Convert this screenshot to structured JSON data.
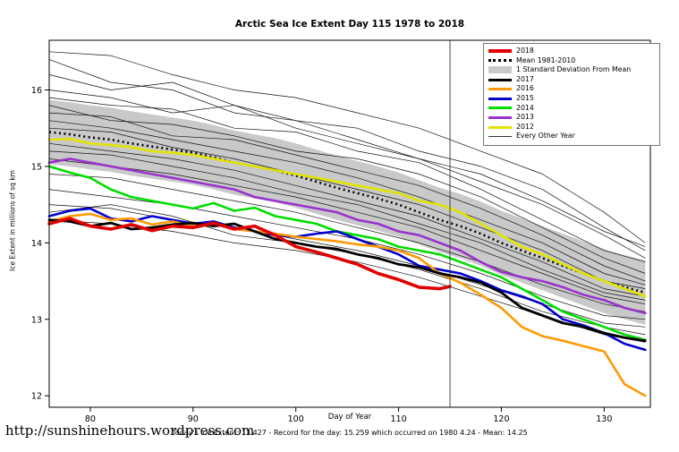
{
  "page": {
    "footer_note": "Today's Ice Extent: 13.427 - Record for the day: 15.259 which occurred on 1980 4.24 - Mean: 14.25",
    "url": "http://sunshinehours.wordpress.com"
  },
  "chart_data": {
    "type": "line",
    "title": "Arctic Sea Ice Extent Day 115 1978 to 2018",
    "xlabel": "Day of Year",
    "ylabel": "Ice Extent in millions of sq km",
    "xlim": [
      76,
      134.5
    ],
    "ylim": [
      11.85,
      16.65
    ],
    "xticks": [
      80,
      90,
      100,
      110,
      120,
      130
    ],
    "yticks": [
      12,
      13,
      14,
      15,
      16
    ],
    "vline_x": 115,
    "grid": false,
    "legend_position": "top-right",
    "x": [
      76,
      78,
      80,
      82,
      84,
      86,
      88,
      90,
      92,
      94,
      96,
      98,
      100,
      102,
      104,
      106,
      108,
      110,
      112,
      114,
      116,
      118,
      120,
      122,
      124,
      126,
      128,
      130,
      132,
      134
    ],
    "mean": {
      "label": "Mean 1981-2010",
      "color": "#000000",
      "dash": "2 3.5",
      "width": 2.6,
      "values": [
        15.45,
        15.42,
        15.38,
        15.35,
        15.3,
        15.26,
        15.22,
        15.18,
        15.12,
        15.05,
        15.0,
        14.95,
        14.88,
        14.8,
        14.72,
        14.65,
        14.58,
        14.5,
        14.4,
        14.3,
        14.22,
        14.12,
        14.0,
        13.9,
        13.8,
        13.7,
        13.6,
        13.5,
        13.42,
        13.35
      ]
    },
    "band": {
      "label": "1 Standard Deviation From Mean",
      "halfwidth": 0.42,
      "color": "#c9c9c9"
    },
    "series": [
      {
        "name": "2012",
        "color": "#e3e300",
        "width": 2.6,
        "values": [
          15.35,
          15.36,
          15.3,
          15.28,
          15.25,
          15.2,
          15.18,
          15.15,
          15.1,
          15.05,
          15.0,
          14.95,
          14.9,
          14.85,
          14.8,
          14.75,
          14.7,
          14.65,
          14.55,
          14.5,
          14.4,
          14.25,
          14.1,
          13.95,
          13.85,
          13.72,
          13.6,
          13.5,
          13.4,
          13.3
        ]
      },
      {
        "name": "2013",
        "color": "#9933cc",
        "width": 2.6,
        "values": [
          15.05,
          15.1,
          15.05,
          15.0,
          14.95,
          14.9,
          14.85,
          14.8,
          14.75,
          14.7,
          14.6,
          14.55,
          14.5,
          14.45,
          14.4,
          14.3,
          14.25,
          14.15,
          14.1,
          14.0,
          13.9,
          13.75,
          13.62,
          13.55,
          13.5,
          13.42,
          13.32,
          13.25,
          13.15,
          13.08
        ]
      },
      {
        "name": "2014",
        "color": "#00dd00",
        "width": 2.6,
        "values": [
          15.0,
          14.92,
          14.85,
          14.7,
          14.6,
          14.55,
          14.5,
          14.45,
          14.52,
          14.42,
          14.46,
          14.35,
          14.3,
          14.25,
          14.15,
          14.1,
          14.05,
          13.95,
          13.9,
          13.85,
          13.75,
          13.65,
          13.55,
          13.4,
          13.25,
          13.1,
          13.0,
          12.9,
          12.8,
          12.73
        ]
      },
      {
        "name": "2015",
        "color": "#0000cc",
        "width": 2.6,
        "values": [
          14.35,
          14.42,
          14.45,
          14.32,
          14.28,
          14.35,
          14.3,
          14.25,
          14.28,
          14.2,
          14.15,
          14.1,
          14.08,
          14.12,
          14.15,
          14.05,
          13.95,
          13.85,
          13.7,
          13.65,
          13.6,
          13.5,
          13.38,
          13.3,
          13.2,
          13.0,
          12.92,
          12.82,
          12.68,
          12.6
        ]
      },
      {
        "name": "2016",
        "color": "#ff9900",
        "width": 2.6,
        "values": [
          14.28,
          14.35,
          14.38,
          14.3,
          14.32,
          14.24,
          14.28,
          14.22,
          14.25,
          14.18,
          14.15,
          14.12,
          14.08,
          14.05,
          14.02,
          13.98,
          13.95,
          13.9,
          13.8,
          13.6,
          13.48,
          13.32,
          13.15,
          12.9,
          12.78,
          12.72,
          12.65,
          12.58,
          12.15,
          12.0
        ]
      },
      {
        "name": "2017",
        "color": "#000000",
        "width": 2.8,
        "values": [
          14.3,
          14.28,
          14.22,
          14.26,
          14.18,
          14.2,
          14.24,
          14.26,
          14.22,
          14.25,
          14.15,
          14.05,
          14.0,
          13.95,
          13.92,
          13.85,
          13.8,
          13.72,
          13.68,
          13.6,
          13.55,
          13.48,
          13.35,
          13.15,
          13.05,
          12.95,
          12.9,
          12.82,
          12.76,
          12.72
        ]
      },
      {
        "name": "2018",
        "color": "#e00000",
        "width": 3.6,
        "x": [
          76,
          78,
          80,
          82,
          84,
          86,
          88,
          90,
          92,
          94,
          96,
          98,
          100,
          102,
          104,
          106,
          108,
          110,
          112,
          114,
          115
        ],
        "values": [
          14.25,
          14.32,
          14.22,
          14.18,
          14.24,
          14.16,
          14.22,
          14.2,
          14.26,
          14.18,
          14.22,
          14.1,
          13.95,
          13.88,
          13.8,
          13.72,
          13.6,
          13.52,
          13.42,
          13.4,
          13.43
        ]
      }
    ],
    "background_series": {
      "label": "Every Other Year",
      "color": "#111111",
      "width": 0.7,
      "x": [
        76,
        82,
        88,
        94,
        100,
        106,
        112,
        118,
        124,
        130,
        134
      ],
      "lines": [
        [
          16.5,
          16.45,
          16.2,
          16.0,
          15.9,
          15.7,
          15.5,
          15.2,
          14.9,
          14.4,
          14.0
        ],
        [
          16.4,
          16.1,
          16.0,
          15.7,
          15.6,
          15.35,
          15.1,
          14.9,
          14.55,
          14.15,
          13.95
        ],
        [
          16.2,
          16.0,
          16.1,
          15.8,
          15.6,
          15.5,
          15.2,
          15.0,
          14.7,
          14.2,
          13.9
        ],
        [
          16.0,
          15.9,
          15.7,
          15.8,
          15.5,
          15.3,
          15.1,
          14.8,
          14.5,
          14.1,
          13.8
        ],
        [
          15.9,
          15.8,
          15.75,
          15.5,
          15.45,
          15.2,
          15.05,
          14.7,
          14.3,
          13.9,
          13.75
        ],
        [
          15.8,
          15.6,
          15.55,
          15.4,
          15.2,
          15.1,
          14.9,
          14.6,
          14.2,
          13.8,
          13.6
        ],
        [
          15.7,
          15.65,
          15.4,
          15.35,
          15.15,
          14.95,
          14.75,
          14.45,
          14.1,
          13.7,
          13.5
        ],
        [
          15.6,
          15.5,
          15.35,
          15.2,
          15.05,
          14.85,
          14.6,
          14.3,
          14.0,
          13.6,
          13.45
        ],
        [
          15.5,
          15.45,
          15.25,
          15.1,
          14.9,
          14.7,
          14.5,
          14.2,
          13.9,
          13.5,
          13.4
        ],
        [
          15.3,
          15.2,
          15.1,
          14.95,
          14.75,
          14.55,
          14.35,
          14.05,
          13.75,
          13.4,
          13.3
        ],
        [
          15.2,
          15.15,
          15.0,
          14.85,
          14.65,
          14.5,
          14.25,
          14.0,
          13.65,
          13.35,
          13.25
        ],
        [
          15.1,
          15.0,
          14.9,
          14.75,
          14.6,
          14.4,
          14.2,
          13.9,
          13.6,
          13.3,
          13.2
        ],
        [
          14.9,
          14.85,
          14.7,
          14.55,
          14.4,
          14.2,
          14.0,
          13.75,
          13.45,
          13.2,
          13.1
        ],
        [
          14.7,
          14.6,
          14.5,
          14.35,
          14.2,
          14.05,
          13.85,
          13.6,
          13.3,
          13.05,
          13.0
        ],
        [
          14.5,
          14.45,
          14.3,
          14.2,
          14.05,
          13.9,
          13.7,
          13.45,
          13.2,
          12.95,
          12.9
        ],
        [
          14.4,
          14.5,
          14.35,
          14.1,
          14.0,
          13.85,
          13.65,
          13.4,
          13.1,
          12.9,
          12.8
        ],
        [
          14.3,
          14.25,
          14.15,
          14.0,
          13.9,
          13.75,
          13.55,
          13.3,
          13.05,
          12.8,
          12.7
        ]
      ]
    },
    "legend": [
      {
        "label": "2018",
        "swatch": "line",
        "color": "#e00000",
        "width": 4
      },
      {
        "label": "Mean 1981-2010",
        "swatch": "dashed",
        "color": "#000000",
        "width": 3
      },
      {
        "label": "1 Standard Deviation From Mean",
        "swatch": "box",
        "color": "#c9c9c9"
      },
      {
        "label": "2017",
        "swatch": "line",
        "color": "#000000",
        "width": 3
      },
      {
        "label": "2016",
        "swatch": "line",
        "color": "#ff9900",
        "width": 3
      },
      {
        "label": "2015",
        "swatch": "line",
        "color": "#0000cc",
        "width": 3
      },
      {
        "label": "2014",
        "swatch": "line",
        "color": "#00dd00",
        "width": 3
      },
      {
        "label": "2013",
        "swatch": "line",
        "color": "#9933cc",
        "width": 3
      },
      {
        "label": "2012",
        "swatch": "line",
        "color": "#e3e300",
        "width": 3
      },
      {
        "label": "Every Other Year",
        "swatch": "line",
        "color": "#333333",
        "width": 1
      }
    ]
  }
}
